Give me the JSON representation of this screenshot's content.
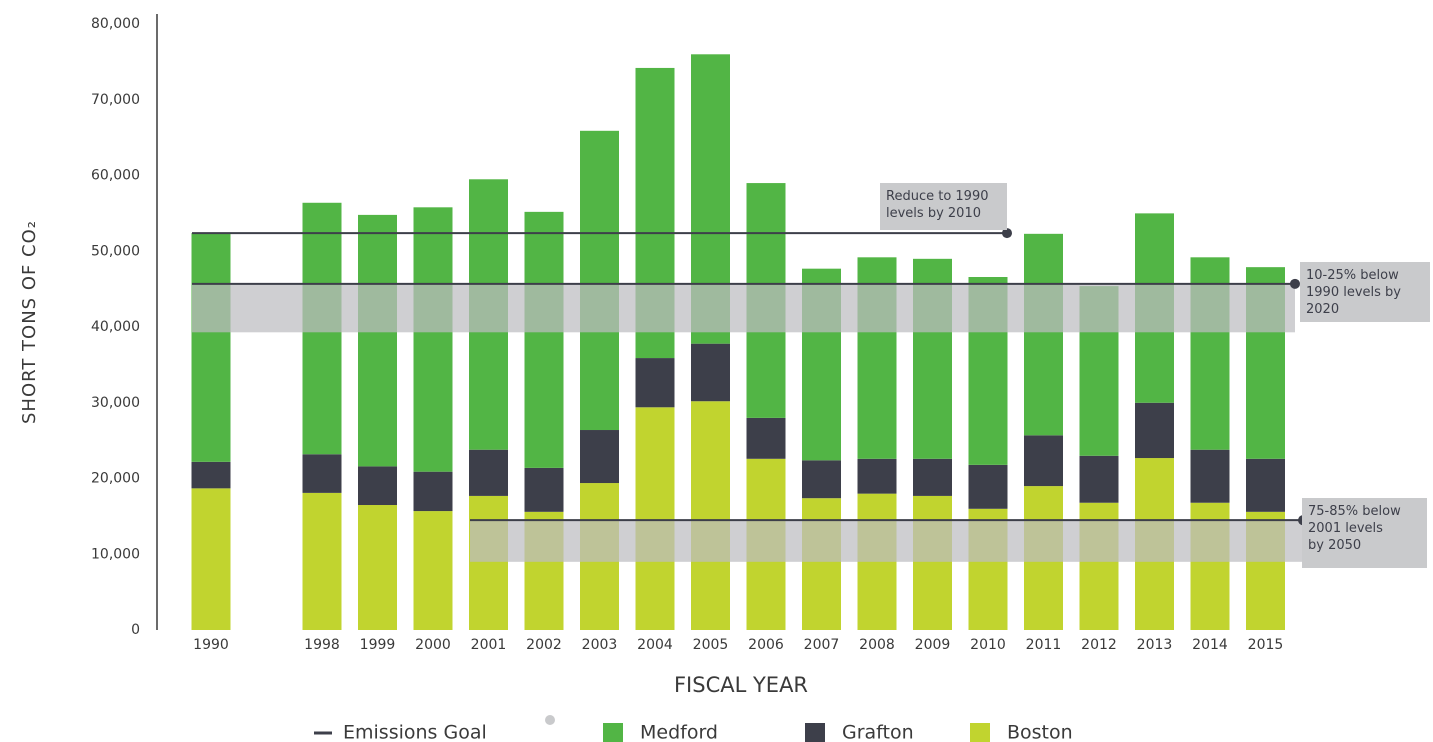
{
  "chart_data": {
    "type": "stacked_bar",
    "y_label": "SHORT TONS OF CO₂",
    "x_label": "FISCAL YEAR",
    "categories": [
      "1990",
      null,
      "1998",
      "1999",
      "2000",
      "2001",
      "2002",
      "2003",
      "2004",
      "2005",
      "2006",
      "2007",
      "2008",
      "2009",
      "2010",
      "2011",
      "2012",
      "2013",
      "2014",
      "2015"
    ],
    "series": [
      {
        "name": "Boston",
        "color": "#c1d42f",
        "values": [
          18700,
          null,
          18100,
          16500,
          15700,
          17700,
          15600,
          19400,
          29400,
          30200,
          22600,
          17400,
          18000,
          17700,
          16000,
          19000,
          16800,
          22700,
          16800,
          15600
        ]
      },
      {
        "name": "Grafton",
        "color": "#3d3f4a",
        "values": [
          3500,
          null,
          5100,
          5100,
          5200,
          6100,
          5800,
          7000,
          6500,
          7600,
          5400,
          5000,
          4600,
          4900,
          5800,
          6700,
          6200,
          7300,
          7000,
          7000
        ]
      },
      {
        "name": "Medford",
        "color": "#52b545",
        "values": [
          30200,
          null,
          33200,
          33200,
          34900,
          35700,
          33800,
          39500,
          38300,
          38200,
          31000,
          25300,
          26600,
          26400,
          24800,
          26600,
          22400,
          25000,
          25400,
          25300
        ]
      }
    ],
    "goal_legend": "Emissions Goal",
    "goals": [
      {
        "value": 52400,
        "label_lines": [
          "Reduce to 1990",
          "levels by 2010"
        ]
      },
      {
        "value": 45700,
        "band": [
          39300,
          45700
        ],
        "label_lines": [
          "10-25% below",
          "1990 levels by",
          "2020"
        ]
      },
      {
        "value": 14500,
        "band": [
          9000,
          14500
        ],
        "label_lines": [
          "75-85% below",
          "2001 levels",
          "by 2050"
        ]
      }
    ],
    "ylim": [
      0,
      80000
    ],
    "yticks": [
      0,
      {
        "value": 10000,
        "label": "10,000"
      },
      {
        "value": 20000,
        "label": "20,000"
      },
      {
        "value": 30000,
        "label": "30,000"
      },
      {
        "value": 40000,
        "label": "40,000"
      },
      {
        "value": 50000,
        "label": "50,000"
      },
      {
        "value": 60000,
        "label": "60,000"
      },
      {
        "value": 70000,
        "label": "70,000"
      },
      {
        "value": 80000,
        "label": "80,000"
      }
    ]
  }
}
